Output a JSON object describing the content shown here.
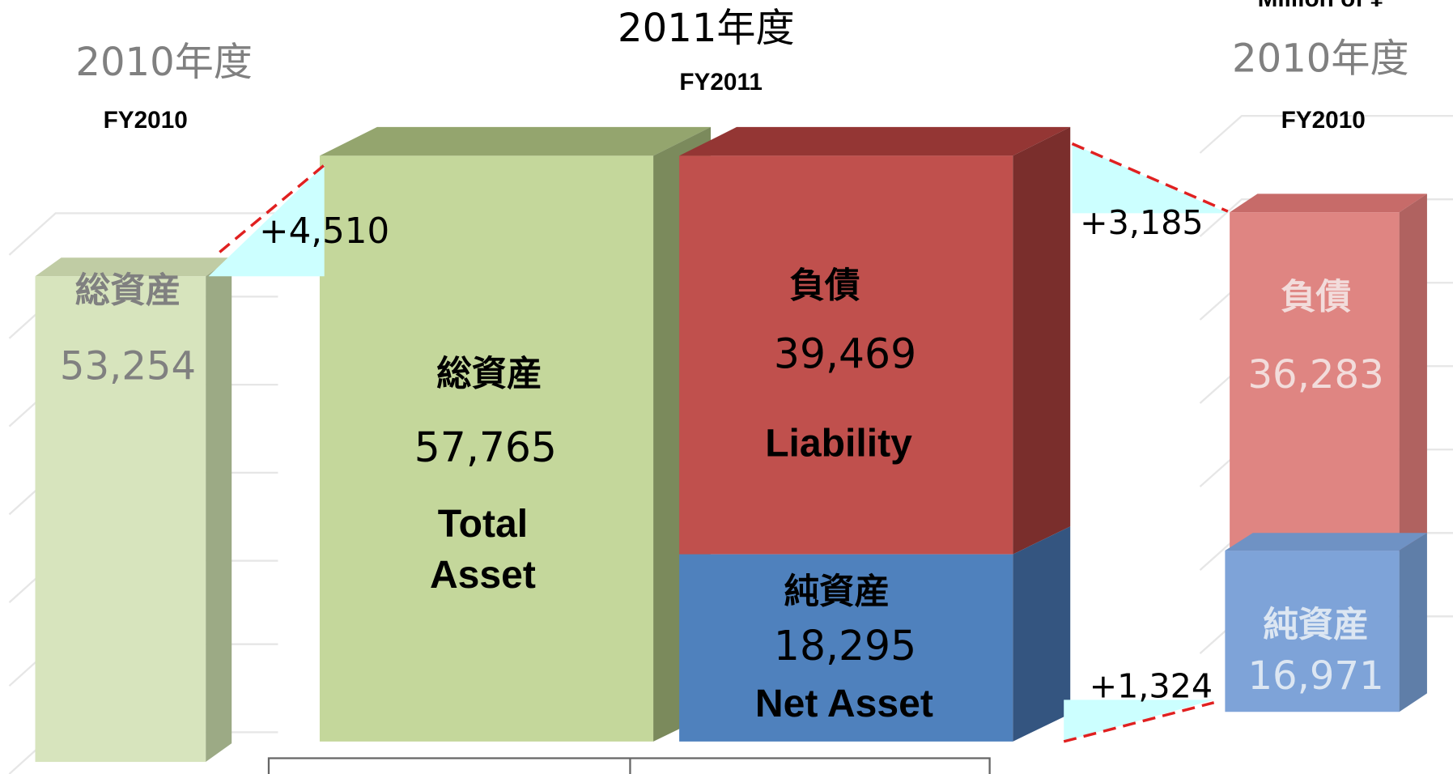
{
  "left": {
    "year_jp": "2010年度",
    "year_en": "FY2010",
    "label_jp": "総資産",
    "value": "53,254"
  },
  "center": {
    "year_jp": "2011年度",
    "year_en": "FY2011",
    "total": {
      "label_jp": "総資産",
      "value": "57,765",
      "label_en": [
        "Total",
        "Asset"
      ]
    },
    "liability": {
      "label_jp": "負債",
      "value": "39,469",
      "label_en": "Liability"
    },
    "net": {
      "label_jp": "純資産",
      "value": "18,295",
      "label_en": "Net Asset"
    }
  },
  "right": {
    "unit": "Million of ¥",
    "year_jp": "2010年度",
    "year_en": "FY2010",
    "liability": {
      "label_jp": "負債",
      "value": "36,283"
    },
    "net": {
      "label_jp": "純資産",
      "value": "16,971"
    }
  },
  "changes": {
    "total": "+4,510",
    "liability": "+3,185",
    "net": "+1,324"
  }
}
